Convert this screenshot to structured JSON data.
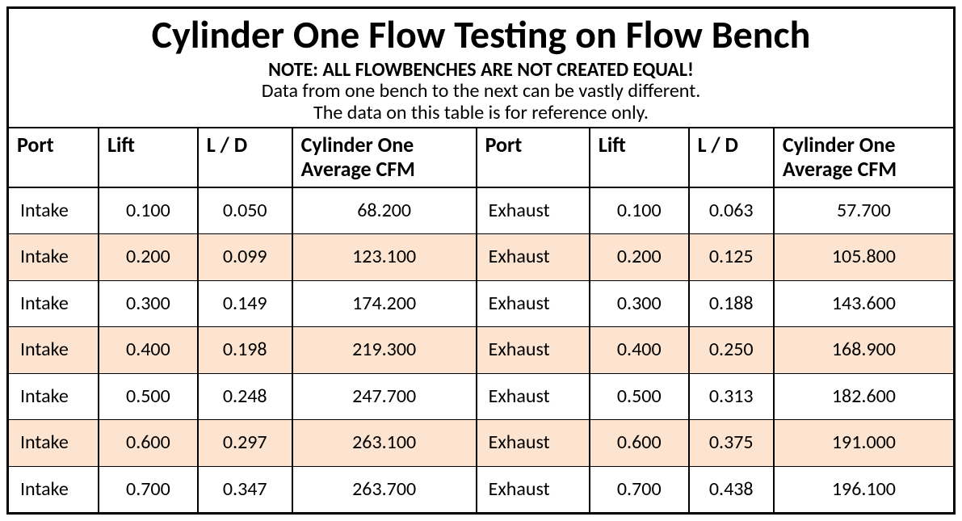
{
  "header": {
    "title": "Cylinder One Flow Testing on Flow Bench",
    "note_bold": "NOTE: ALL FLOWBENCHES ARE NOT CREATED EQUAL!",
    "note_line_1": "Data from one bench to the next can be vastly different.",
    "note_line_2": "The data on this table is for reference only."
  },
  "table": {
    "type": "table",
    "stripe_color": "#fce4d0",
    "background_color": "#ffffff",
    "border_color": "#000000",
    "header_fontsize": 26,
    "body_fontsize": 24,
    "columns": [
      {
        "key": "port_a",
        "label": "Port",
        "align": "left",
        "width_pct": 9.5
      },
      {
        "key": "lift_a",
        "label": "Lift",
        "align": "center",
        "width_pct": 10.5
      },
      {
        "key": "ld_a",
        "label": "L / D",
        "align": "center",
        "width_pct": 10.0
      },
      {
        "key": "cfm_a",
        "label": "Cylinder One Average CFM",
        "align": "center",
        "width_pct": 19.5
      },
      {
        "key": "port_b",
        "label": "Port",
        "align": "left",
        "width_pct": 12.0
      },
      {
        "key": "lift_b",
        "label": "Lift",
        "align": "center",
        "width_pct": 10.5
      },
      {
        "key": "ld_b",
        "label": "L / D",
        "align": "center",
        "width_pct": 9.0
      },
      {
        "key": "cfm_b",
        "label": "Cylinder One Average CFM",
        "align": "center",
        "width_pct": 19.0
      }
    ],
    "rows": [
      {
        "striped": false,
        "port_a": "Intake",
        "lift_a": "0.100",
        "ld_a": "0.050",
        "cfm_a": "68.200",
        "port_b": "Exhaust",
        "lift_b": "0.100",
        "ld_b": "0.063",
        "cfm_b": "57.700"
      },
      {
        "striped": true,
        "port_a": "Intake",
        "lift_a": "0.200",
        "ld_a": "0.099",
        "cfm_a": "123.100",
        "port_b": "Exhaust",
        "lift_b": "0.200",
        "ld_b": "0.125",
        "cfm_b": "105.800"
      },
      {
        "striped": false,
        "port_a": "Intake",
        "lift_a": "0.300",
        "ld_a": "0.149",
        "cfm_a": "174.200",
        "port_b": "Exhaust",
        "lift_b": "0.300",
        "ld_b": "0.188",
        "cfm_b": "143.600"
      },
      {
        "striped": true,
        "port_a": "Intake",
        "lift_a": "0.400",
        "ld_a": "0.198",
        "cfm_a": "219.300",
        "port_b": "Exhaust",
        "lift_b": "0.400",
        "ld_b": "0.250",
        "cfm_b": "168.900"
      },
      {
        "striped": false,
        "port_a": "Intake",
        "lift_a": "0.500",
        "ld_a": "0.248",
        "cfm_a": "247.700",
        "port_b": "Exhaust",
        "lift_b": "0.500",
        "ld_b": "0.313",
        "cfm_b": "182.600"
      },
      {
        "striped": true,
        "port_a": "Intake",
        "lift_a": "0.600",
        "ld_a": "0.297",
        "cfm_a": "263.100",
        "port_b": "Exhaust",
        "lift_b": "0.600",
        "ld_b": "0.375",
        "cfm_b": "191.000"
      },
      {
        "striped": false,
        "port_a": "Intake",
        "lift_a": "0.700",
        "ld_a": "0.347",
        "cfm_a": "263.700",
        "port_b": "Exhaust",
        "lift_b": "0.700",
        "ld_b": "0.438",
        "cfm_b": "196.100"
      }
    ]
  }
}
